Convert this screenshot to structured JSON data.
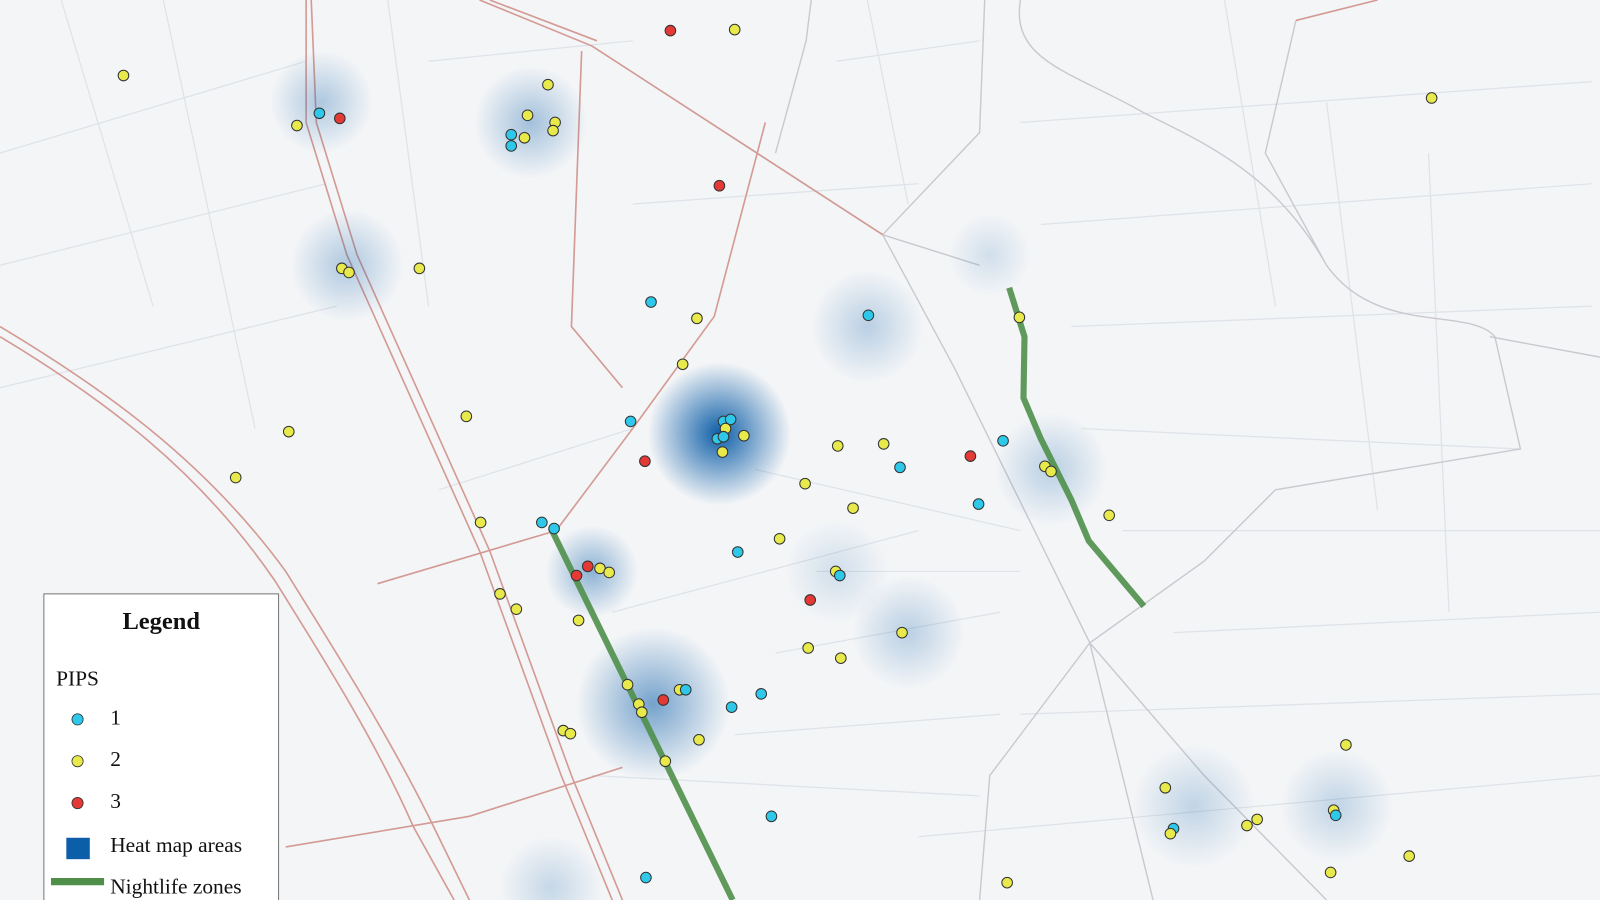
{
  "legend": {
    "title": "Legend",
    "group_title": "PIPS",
    "items": [
      {
        "label": "1",
        "color": "#2ec8ea"
      },
      {
        "label": "2",
        "color": "#e8ea4c"
      },
      {
        "label": "3",
        "color": "#e53935"
      }
    ],
    "heat": {
      "label": "Heat map areas",
      "color": "#0d5ea8"
    },
    "nightlife": {
      "label": "Nightlife zones",
      "color": "#4f8f4a"
    }
  }
}
